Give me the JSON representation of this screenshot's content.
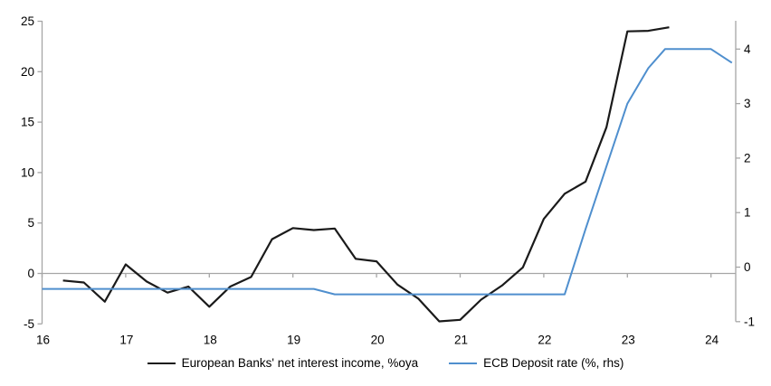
{
  "chart_data": {
    "type": "line",
    "title": "",
    "x_axis": {
      "ticks": [
        16,
        17,
        18,
        19,
        20,
        21,
        22,
        23,
        24
      ],
      "range": [
        16,
        24.3
      ],
      "tick_label_position": "below-plot",
      "zero_baseline": true
    },
    "y_axis_left": {
      "ticks": [
        25,
        20,
        15,
        10,
        5,
        0,
        -5
      ],
      "range": [
        -5,
        25
      ],
      "side": "left"
    },
    "y_axis_right": {
      "ticks": [
        4,
        3,
        2,
        1,
        0,
        -1
      ],
      "range": [
        -1,
        4.5
      ],
      "side": "right"
    },
    "grid": "zero-line-only",
    "zero_line_color": "#a6a6a6",
    "axis_color": "#a6a6a6",
    "legend_position": "bottom-center",
    "series": [
      {
        "name": "European Banks' net interest income, %oya",
        "axis": "left",
        "color": "#1a1a1a",
        "points": [
          [
            16.25,
            -0.7
          ],
          [
            16.5,
            -0.9
          ],
          [
            16.75,
            -2.8
          ],
          [
            17.0,
            0.9
          ],
          [
            17.25,
            -0.8
          ],
          [
            17.5,
            -1.9
          ],
          [
            17.75,
            -1.3
          ],
          [
            18.0,
            -3.3
          ],
          [
            18.25,
            -1.3
          ],
          [
            18.5,
            -0.35
          ],
          [
            18.75,
            3.4
          ],
          [
            19.0,
            4.5
          ],
          [
            19.25,
            4.3
          ],
          [
            19.5,
            4.45
          ],
          [
            19.75,
            1.45
          ],
          [
            20.0,
            1.2
          ],
          [
            20.25,
            -1.1
          ],
          [
            20.5,
            -2.5
          ],
          [
            20.75,
            -4.75
          ],
          [
            21.0,
            -4.6
          ],
          [
            21.25,
            -2.6
          ],
          [
            21.5,
            -1.2
          ],
          [
            21.75,
            0.6
          ],
          [
            22.0,
            5.4
          ],
          [
            22.25,
            7.9
          ],
          [
            22.5,
            9.1
          ],
          [
            22.75,
            14.5
          ],
          [
            23.0,
            24.0
          ],
          [
            23.25,
            24.05
          ],
          [
            23.5,
            24.4
          ]
        ]
      },
      {
        "name": "ECB Deposit rate (%, rhs)",
        "axis": "right",
        "color": "#4f8fce",
        "points": [
          [
            16.0,
            -0.4
          ],
          [
            19.25,
            -0.4
          ],
          [
            19.5,
            -0.5
          ],
          [
            22.25,
            -0.5
          ],
          [
            22.5,
            0.7
          ],
          [
            22.75,
            1.85
          ],
          [
            23.0,
            3.0
          ],
          [
            23.25,
            3.65
          ],
          [
            23.45,
            4.0
          ],
          [
            24.0,
            4.0
          ],
          [
            24.25,
            3.75
          ]
        ]
      }
    ]
  }
}
